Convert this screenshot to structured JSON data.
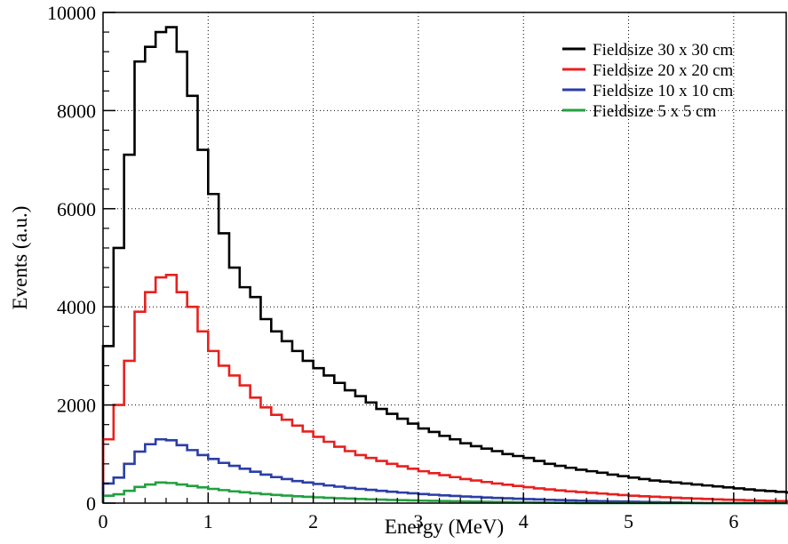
{
  "chart_data": {
    "type": "line",
    "style": "step-histogram",
    "title": "",
    "xlabel": "Energy (MeV)",
    "ylabel": "Events (a.u.)",
    "xlim": [
      0,
      6.5
    ],
    "ylim": [
      0,
      10000
    ],
    "x_ticks": [
      0,
      1,
      2,
      3,
      4,
      5,
      6
    ],
    "y_ticks": [
      0,
      2000,
      4000,
      6000,
      8000,
      10000
    ],
    "x_tick_labels": [
      "0",
      "1",
      "2",
      "3",
      "4",
      "5",
      "6"
    ],
    "y_tick_labels": [
      "0",
      "2000",
      "4000",
      "6000",
      "8000",
      "10000"
    ],
    "grid": true,
    "legend_position": "top-right",
    "bin_width_mev": 0.1,
    "bin_start_mev": 0.0,
    "series": [
      {
        "name": "Fieldsize 30 x 30 cm",
        "color": "#000000",
        "values": [
          3200,
          5200,
          7100,
          9000,
          9300,
          9600,
          9700,
          9200,
          8300,
          7200,
          6300,
          5500,
          4800,
          4400,
          4200,
          3750,
          3500,
          3300,
          3100,
          2900,
          2750,
          2600,
          2450,
          2300,
          2180,
          2050,
          1920,
          1820,
          1720,
          1620,
          1520,
          1450,
          1370,
          1300,
          1220,
          1160,
          1110,
          1060,
          1000,
          960,
          920,
          860,
          800,
          760,
          720,
          680,
          650,
          620,
          580,
          550,
          520,
          490,
          460,
          440,
          420,
          400,
          380,
          360,
          340,
          320,
          300,
          280,
          260,
          245,
          230,
          215,
          200,
          190,
          180,
          170,
          160,
          150,
          140,
          130,
          120,
          112,
          104,
          96,
          88,
          80,
          72,
          66,
          60,
          55,
          50,
          45,
          40,
          35,
          30,
          25,
          20,
          15,
          10,
          5,
          0
        ]
      },
      {
        "name": "Fieldsize 20 x 20 cm",
        "color": "#e8201f",
        "values": [
          1300,
          2000,
          2900,
          3900,
          4300,
          4600,
          4650,
          4300,
          4000,
          3500,
          3100,
          2800,
          2600,
          2400,
          2150,
          1950,
          1800,
          1700,
          1580,
          1460,
          1350,
          1250,
          1150,
          1060,
          980,
          920,
          860,
          800,
          750,
          700,
          650,
          610,
          570,
          530,
          490,
          460,
          430,
          400,
          375,
          350,
          325,
          300,
          280,
          260,
          240,
          225,
          210,
          195,
          180,
          165,
          150,
          140,
          130,
          120,
          110,
          100,
          92,
          84,
          76,
          70,
          64,
          58,
          52,
          47,
          42,
          38,
          34,
          30,
          26,
          22,
          18,
          14,
          10,
          6,
          3,
          0
        ]
      },
      {
        "name": "Fieldsize 10 x 10 cm",
        "color": "#2b3ea6",
        "values": [
          400,
          520,
          800,
          1050,
          1200,
          1300,
          1280,
          1180,
          1080,
          980,
          900,
          820,
          760,
          700,
          640,
          580,
          530,
          490,
          450,
          420,
          390,
          360,
          335,
          310,
          290,
          270,
          250,
          232,
          215,
          200,
          185,
          170,
          158,
          146,
          135,
          125,
          115,
          106,
          98,
          90,
          82,
          75,
          68,
          62,
          56,
          50,
          45,
          40,
          36,
          32,
          28,
          24,
          20,
          16,
          12,
          8,
          4,
          0
        ]
      },
      {
        "name": "Fieldsize 5 x 5 cm",
        "color": "#22a040",
        "values": [
          150,
          180,
          250,
          330,
          380,
          420,
          410,
          380,
          350,
          320,
          290,
          265,
          240,
          220,
          200,
          182,
          166,
          152,
          140,
          128,
          118,
          108,
          99,
          91,
          84,
          77,
          71,
          65,
          60,
          55,
          50,
          46,
          42,
          38,
          34,
          30,
          27,
          24,
          21,
          18,
          15,
          12,
          9,
          6,
          3,
          0
        ]
      }
    ]
  }
}
